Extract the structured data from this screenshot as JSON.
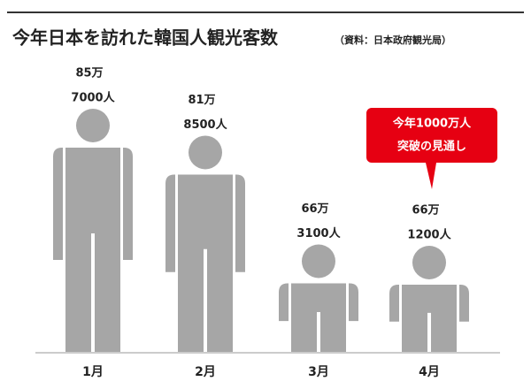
{
  "chart_data": {
    "type": "pictogram",
    "title": "今年日本を訪れた韓国人観光客数",
    "subtitle": "（資料：日本政府観光局）",
    "categories": [
      "1月",
      "2月",
      "3月",
      "4月"
    ],
    "values": [
      857000,
      818500,
      663100,
      661200
    ],
    "value_labels": [
      [
        "85万",
        "7000人"
      ],
      [
        "81万",
        "8500人"
      ],
      [
        "66万",
        "3100人"
      ],
      [
        "66万",
        "1200人"
      ]
    ],
    "color": "#a6a6a6",
    "annotation": {
      "lines": [
        "今年1000万人",
        "突破の見通し"
      ],
      "color": "#e60012",
      "category": 3
    }
  }
}
